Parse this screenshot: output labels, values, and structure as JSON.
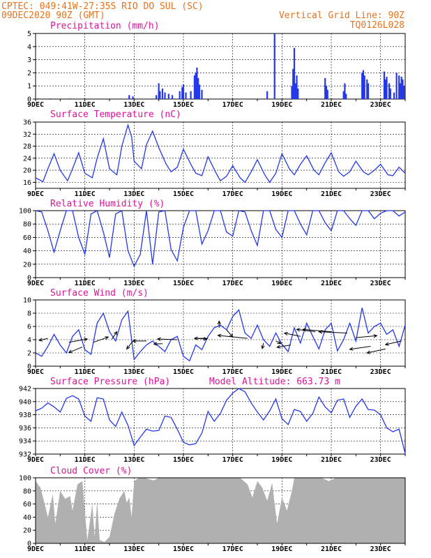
{
  "header": {
    "source_line": "CPTEC:  049:41W-27:35S  RIO DO SUL (SC)",
    "date_line": "09DEC2020 90Z (GMT)",
    "grid_note": "Vertical Grid Line: 90Z",
    "run_code": "TQ0126L028"
  },
  "colors": {
    "header": "#e8731c",
    "panel_title": "#e0129a",
    "series": "#2438e8",
    "cloud": "#b0b0b0"
  },
  "x_axis": {
    "day_range": [
      9,
      24
    ],
    "tick_days": [
      9,
      11,
      13,
      15,
      17,
      19,
      21,
      23
    ],
    "tick_labels": [
      "9DEC",
      "11DEC",
      "13DEC",
      "15DEC",
      "17DEC",
      "19DEC",
      "21DEC",
      "23DEC"
    ]
  },
  "chart_data": [
    {
      "type": "bar",
      "title": "Precipitation (mm/h)",
      "ylim": [
        0,
        5
      ],
      "yticks": [
        0,
        1,
        2,
        3,
        4,
        5
      ],
      "grid": "dashed",
      "x_unit": "day of December",
      "bursts": [
        [
          9.1,
          0.05
        ],
        [
          9.6,
          0.05
        ],
        [
          10.4,
          0.05
        ],
        [
          12.8,
          0.3
        ],
        [
          12.95,
          0.2
        ],
        [
          13.9,
          0.3
        ],
        [
          14.0,
          1.2
        ],
        [
          14.05,
          0.6
        ],
        [
          14.15,
          0.8
        ],
        [
          14.25,
          0.5
        ],
        [
          14.4,
          0.4
        ],
        [
          14.55,
          0.3
        ],
        [
          14.85,
          0.6
        ],
        [
          14.95,
          0.9
        ],
        [
          15.0,
          1.1
        ],
        [
          15.1,
          0.5
        ],
        [
          15.3,
          0.6
        ],
        [
          15.45,
          1.8
        ],
        [
          15.5,
          2.0
        ],
        [
          15.55,
          2.4
        ],
        [
          15.6,
          1.6
        ],
        [
          15.65,
          1.1
        ],
        [
          15.75,
          0.7
        ],
        [
          18.4,
          0.6
        ],
        [
          18.7,
          5.0
        ],
        [
          19.4,
          1.0
        ],
        [
          19.45,
          2.3
        ],
        [
          19.5,
          3.9
        ],
        [
          19.55,
          1.2
        ],
        [
          19.6,
          1.8
        ],
        [
          19.65,
          0.8
        ],
        [
          20.75,
          1.6
        ],
        [
          20.8,
          1.0
        ],
        [
          20.85,
          0.7
        ],
        [
          21.5,
          0.6
        ],
        [
          21.55,
          1.2
        ],
        [
          21.6,
          0.4
        ],
        [
          22.25,
          2.0
        ],
        [
          22.3,
          2.2
        ],
        [
          22.35,
          1.8
        ],
        [
          22.45,
          1.5
        ],
        [
          22.5,
          1.2
        ],
        [
          23.15,
          2.1
        ],
        [
          23.2,
          1.5
        ],
        [
          23.25,
          1.7
        ],
        [
          23.35,
          1.2
        ],
        [
          23.4,
          0.8
        ],
        [
          23.55,
          0.5
        ],
        [
          23.65,
          2.0
        ],
        [
          23.75,
          1.8
        ],
        [
          23.8,
          1.2
        ],
        [
          23.85,
          1.7
        ],
        [
          23.9,
          1.5
        ],
        [
          23.95,
          1.0
        ]
      ]
    },
    {
      "type": "line",
      "title": "Surface Temperature (nC)",
      "ylim": [
        14,
        36
      ],
      "yticks": [
        16,
        20,
        24,
        28,
        32,
        36
      ],
      "grid": "dashed",
      "x": [
        9.0,
        9.3,
        9.5,
        9.75,
        10.0,
        10.3,
        10.5,
        10.75,
        11.0,
        11.3,
        11.5,
        11.75,
        12.0,
        12.3,
        12.5,
        12.75,
        12.9,
        13.0,
        13.3,
        13.5,
        13.75,
        14.0,
        14.3,
        14.5,
        14.75,
        15.0,
        15.3,
        15.5,
        15.75,
        16.0,
        16.3,
        16.5,
        16.75,
        17.0,
        17.3,
        17.5,
        17.75,
        18.0,
        18.3,
        18.5,
        18.75,
        19.0,
        19.3,
        19.5,
        19.75,
        20.0,
        20.3,
        20.5,
        20.75,
        21.0,
        21.3,
        21.5,
        21.75,
        22.0,
        22.3,
        22.5,
        22.75,
        23.0,
        23.3,
        23.5,
        23.75,
        24.0
      ],
      "y": [
        17.5,
        16.2,
        20.5,
        25.5,
        20.0,
        16.5,
        20.5,
        25.8,
        19.0,
        17.5,
        24.0,
        30.5,
        20.5,
        18.5,
        28.0,
        35.0,
        31.0,
        23.0,
        20.5,
        28.5,
        33.0,
        27.5,
        22.0,
        19.5,
        21.0,
        27.0,
        22.0,
        19.0,
        18.2,
        24.5,
        19.5,
        16.5,
        18.0,
        21.5,
        17.5,
        16.0,
        19.5,
        23.5,
        18.5,
        16.0,
        19.0,
        25.5,
        20.5,
        18.5,
        22.0,
        24.8,
        20.0,
        18.5,
        22.5,
        25.8,
        19.5,
        18.0,
        19.5,
        23.0,
        19.5,
        18.5,
        20.0,
        22.0,
        18.5,
        18.2,
        21.0,
        19.0
      ]
    },
    {
      "type": "line",
      "title": "Relative Humidity (%)",
      "ylim": [
        0,
        100
      ],
      "yticks": [
        0,
        20,
        40,
        60,
        80,
        100
      ],
      "grid": "dashed",
      "x": [
        9.0,
        9.25,
        9.5,
        9.75,
        10.0,
        10.25,
        10.5,
        10.75,
        11.0,
        11.25,
        11.5,
        11.75,
        12.0,
        12.25,
        12.5,
        12.75,
        13.0,
        13.25,
        13.5,
        13.75,
        14.0,
        14.25,
        14.5,
        14.75,
        15.0,
        15.25,
        15.5,
        15.75,
        16.0,
        16.25,
        16.5,
        16.75,
        17.0,
        17.25,
        17.5,
        17.75,
        18.0,
        18.25,
        18.5,
        18.75,
        19.0,
        19.25,
        19.5,
        19.75,
        20.0,
        20.25,
        20.5,
        20.75,
        21.0,
        21.25,
        21.5,
        21.75,
        22.0,
        22.25,
        22.5,
        22.75,
        23.0,
        23.25,
        23.5,
        23.75,
        24.0
      ],
      "y": [
        100,
        98,
        70,
        38,
        70,
        100,
        100,
        60,
        35,
        95,
        100,
        68,
        30,
        95,
        100,
        40,
        17,
        35,
        100,
        20,
        98,
        100,
        42,
        25,
        75,
        100,
        100,
        50,
        70,
        100,
        100,
        68,
        62,
        100,
        98,
        70,
        48,
        100,
        100,
        72,
        60,
        100,
        100,
        80,
        64,
        100,
        100,
        82,
        70,
        100,
        100,
        88,
        78,
        100,
        100,
        88,
        96,
        100,
        100,
        92,
        98
      ]
    },
    {
      "type": "line",
      "title": "Surface Wind (m/s)",
      "ylim": [
        0,
        10
      ],
      "yticks": [
        0,
        2,
        4,
        6,
        8,
        10
      ],
      "grid": "dashed",
      "x": [
        9.0,
        9.25,
        9.5,
        9.75,
        10.0,
        10.25,
        10.5,
        10.75,
        11.0,
        11.25,
        11.5,
        11.75,
        12.0,
        12.25,
        12.5,
        12.75,
        13.0,
        13.25,
        13.5,
        13.75,
        14.0,
        14.25,
        14.5,
        14.75,
        15.0,
        15.25,
        15.5,
        15.75,
        16.0,
        16.25,
        16.5,
        16.75,
        17.0,
        17.25,
        17.5,
        17.75,
        18.0,
        18.25,
        18.5,
        18.75,
        19.0,
        19.25,
        19.5,
        19.75,
        20.0,
        20.25,
        20.5,
        20.75,
        21.0,
        21.25,
        21.5,
        21.75,
        22.0,
        22.25,
        22.5,
        22.75,
        23.0,
        23.25,
        23.5,
        23.75,
        24.0
      ],
      "y": [
        2.0,
        1.5,
        3.0,
        4.8,
        3.2,
        2.0,
        4.5,
        5.5,
        2.5,
        1.8,
        6.5,
        8.0,
        5.2,
        3.8,
        7.0,
        8.3,
        1.0,
        2.2,
        3.2,
        3.8,
        3.0,
        2.2,
        4.0,
        4.5,
        1.5,
        0.8,
        3.2,
        2.5,
        4.5,
        5.8,
        6.2,
        5.5,
        7.5,
        8.5,
        5.0,
        4.2,
        6.2,
        4.0,
        3.0,
        5.0,
        3.3,
        2.2,
        5.8,
        3.5,
        6.5,
        4.5,
        2.6,
        5.5,
        6.5,
        2.3,
        4.0,
        6.5,
        3.8,
        8.8,
        5.0,
        6.0,
        6.5,
        4.8,
        5.5,
        3.0,
        6.2
      ],
      "vectors": [
        [
          9.5,
          4.2,
          -0.35,
          -0.3
        ],
        [
          10.35,
          3.6,
          0.75,
          0.5
        ],
        [
          10.9,
          2.9,
          -0.55,
          -0.85
        ],
        [
          11.35,
          3.6,
          0.6,
          0.8
        ],
        [
          12.1,
          4.1,
          0.2,
          1.1
        ],
        [
          12.95,
          3.8,
          -0.25,
          -1.2
        ],
        [
          13.5,
          3.8,
          -0.55,
          0.0
        ],
        [
          14.15,
          3.4,
          -0.35,
          -0.05
        ],
        [
          14.75,
          4.0,
          -0.8,
          0.1
        ],
        [
          15.5,
          4.2,
          0.45,
          -0.1
        ],
        [
          16.0,
          4.2,
          -0.55,
          0.0
        ],
        [
          16.45,
          5.8,
          0.0,
          1.0
        ],
        [
          16.75,
          5.5,
          0.25,
          -1.1
        ],
        [
          17.6,
          4.2,
          -1.2,
          0.45
        ],
        [
          18.25,
          3.5,
          -0.05,
          -0.85
        ],
        [
          18.75,
          3.8,
          0.2,
          -0.4
        ],
        [
          19.35,
          3.2,
          -0.55,
          -0.35
        ],
        [
          19.75,
          4.5,
          -0.65,
          0.5
        ],
        [
          20.35,
          5.2,
          -0.75,
          0.35
        ],
        [
          21.0,
          5.2,
          -1.15,
          0.35
        ],
        [
          21.65,
          5.0,
          -1.15,
          0.2
        ],
        [
          22.0,
          4.3,
          0.85,
          0.3
        ],
        [
          22.6,
          3.0,
          -0.85,
          -0.45
        ],
        [
          23.2,
          2.6,
          -0.75,
          -0.6
        ],
        [
          23.85,
          3.8,
          -0.65,
          -0.55
        ]
      ]
    },
    {
      "type": "line",
      "title": "Surface Pressure (hPa)",
      "ylim": [
        932,
        942
      ],
      "yticks": [
        932,
        934,
        936,
        938,
        940,
        942
      ],
      "grid": "dashed",
      "annotation": "Model Altitude: 663.73 m",
      "x": [
        9.0,
        9.25,
        9.5,
        9.75,
        10.0,
        10.25,
        10.5,
        10.75,
        11.0,
        11.25,
        11.5,
        11.75,
        12.0,
        12.25,
        12.5,
        12.75,
        13.0,
        13.25,
        13.5,
        13.75,
        14.0,
        14.25,
        14.5,
        14.75,
        15.0,
        15.25,
        15.5,
        15.75,
        16.0,
        16.25,
        16.5,
        16.75,
        17.0,
        17.25,
        17.5,
        17.75,
        18.0,
        18.25,
        18.5,
        18.75,
        19.0,
        19.25,
        19.5,
        19.75,
        20.0,
        20.25,
        20.5,
        20.75,
        21.0,
        21.25,
        21.5,
        21.75,
        22.0,
        22.25,
        22.5,
        22.75,
        23.0,
        23.25,
        23.5,
        23.75,
        24.0
      ],
      "y": [
        938.6,
        939.0,
        939.8,
        939.2,
        938.4,
        940.5,
        940.9,
        940.4,
        937.8,
        937.0,
        940.6,
        940.4,
        937.2,
        936.2,
        938.4,
        936.4,
        933.3,
        934.6,
        935.8,
        935.5,
        935.6,
        937.8,
        937.6,
        935.8,
        933.8,
        933.4,
        933.6,
        935.2,
        938.5,
        937.0,
        938.2,
        940.2,
        941.3,
        942.0,
        941.5,
        939.8,
        938.4,
        937.2,
        938.6,
        940.4,
        937.4,
        936.5,
        938.8,
        938.5,
        937.0,
        938.2,
        940.7,
        939.2,
        938.3,
        940.2,
        940.4,
        937.6,
        939.3,
        940.4,
        938.8,
        938.7,
        938.0,
        936.0,
        935.4,
        935.8,
        932.1
      ]
    },
    {
      "type": "area",
      "title": "Cloud Cover (%)",
      "ylim": [
        0,
        100
      ],
      "yticks": [
        0,
        20,
        40,
        60,
        80,
        100
      ],
      "grid": "dashed",
      "x": [
        9.0,
        9.2,
        9.3,
        9.5,
        9.7,
        9.8,
        10.0,
        10.2,
        10.4,
        10.5,
        10.7,
        10.9,
        11.1,
        11.3,
        11.4,
        11.5,
        11.6,
        11.8,
        12.0,
        12.2,
        12.4,
        12.6,
        12.7,
        12.8,
        12.9,
        13.0,
        13.2,
        13.4,
        13.6,
        13.8,
        14.0,
        14.3,
        14.6,
        14.8,
        15.0,
        15.3,
        15.6,
        15.8,
        16.0,
        16.3,
        16.6,
        16.8,
        17.0,
        17.3,
        17.6,
        17.8,
        18.0,
        18.2,
        18.4,
        18.6,
        18.8,
        19.0,
        19.2,
        19.4,
        19.5,
        19.7,
        20.0,
        20.3,
        20.6,
        20.9,
        21.2,
        21.5,
        21.8,
        22.1,
        22.4,
        22.7,
        23.0,
        23.3,
        23.6,
        24.0
      ],
      "y": [
        95,
        85,
        70,
        40,
        75,
        30,
        80,
        68,
        72,
        50,
        90,
        95,
        5,
        60,
        10,
        65,
        5,
        2,
        10,
        45,
        68,
        80,
        62,
        70,
        40,
        95,
        100,
        100,
        98,
        96,
        100,
        100,
        100,
        100,
        100,
        100,
        100,
        100,
        100,
        100,
        100,
        100,
        100,
        100,
        90,
        70,
        95,
        85,
        65,
        92,
        30,
        70,
        50,
        80,
        100,
        100,
        100,
        100,
        100,
        95,
        100,
        100,
        100,
        100,
        100,
        100,
        100,
        100,
        100,
        100
      ]
    }
  ]
}
